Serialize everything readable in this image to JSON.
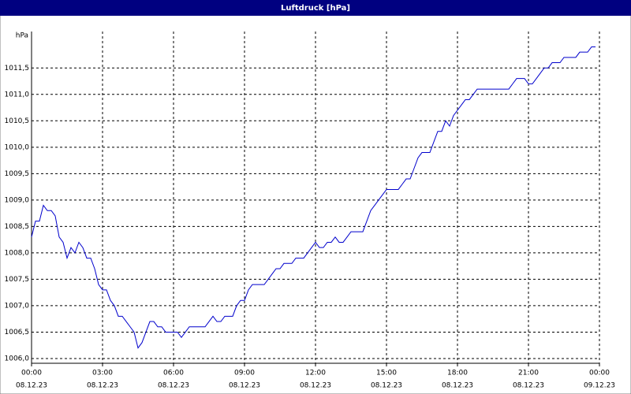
{
  "chart_data": {
    "type": "line",
    "title": "Luftdruck [hPa]",
    "y_unit": "hPa",
    "x": [
      0,
      10,
      20,
      30,
      40,
      50,
      60,
      70,
      80,
      90,
      100,
      110,
      120,
      130,
      140,
      150,
      160,
      170,
      180,
      190,
      200,
      210,
      220,
      230,
      240,
      250,
      260,
      270,
      280,
      290,
      300,
      310,
      320,
      330,
      340,
      350,
      360,
      370,
      380,
      390,
      400,
      410,
      420,
      430,
      440,
      450,
      460,
      470,
      480,
      490,
      500,
      510,
      520,
      530,
      540,
      550,
      560,
      570,
      580,
      590,
      600,
      610,
      620,
      630,
      640,
      650,
      660,
      670,
      680,
      690,
      700,
      710,
      720,
      730,
      740,
      750,
      760,
      770,
      780,
      790,
      800,
      810,
      820,
      830,
      840,
      850,
      860,
      870,
      880,
      890,
      900,
      910,
      920,
      930,
      940,
      950,
      960,
      970,
      980,
      990,
      1000,
      1010,
      1020,
      1030,
      1040,
      1050,
      1060,
      1070,
      1080,
      1090,
      1100,
      1110,
      1120,
      1130,
      1140,
      1150,
      1160,
      1170,
      1180,
      1190,
      1200,
      1210,
      1220,
      1230,
      1240,
      1250,
      1260,
      1270,
      1280,
      1290,
      1300,
      1310,
      1320,
      1330,
      1340,
      1350,
      1360,
      1370,
      1380,
      1390,
      1400,
      1410,
      1420,
      1430
    ],
    "series": [
      {
        "name": "Luftdruck",
        "color": "#0000cc",
        "values": [
          1008.3,
          1008.6,
          1008.6,
          1008.9,
          1008.8,
          1008.8,
          1008.7,
          1008.3,
          1008.2,
          1007.9,
          1008.1,
          1008.0,
          1008.2,
          1008.1,
          1007.9,
          1007.9,
          1007.7,
          1007.4,
          1007.3,
          1007.3,
          1007.1,
          1007.0,
          1006.8,
          1006.8,
          1006.7,
          1006.6,
          1006.5,
          1006.2,
          1006.3,
          1006.5,
          1006.7,
          1006.7,
          1006.6,
          1006.6,
          1006.5,
          1006.5,
          1006.5,
          1006.5,
          1006.4,
          1006.5,
          1006.6,
          1006.6,
          1006.6,
          1006.6,
          1006.6,
          1006.7,
          1006.8,
          1006.7,
          1006.7,
          1006.8,
          1006.8,
          1006.8,
          1007.0,
          1007.1,
          1007.1,
          1007.3,
          1007.4,
          1007.4,
          1007.4,
          1007.4,
          1007.5,
          1007.6,
          1007.7,
          1007.7,
          1007.8,
          1007.8,
          1007.8,
          1007.9,
          1007.9,
          1007.9,
          1008.0,
          1008.1,
          1008.2,
          1008.1,
          1008.1,
          1008.2,
          1008.2,
          1008.3,
          1008.2,
          1008.2,
          1008.3,
          1008.4,
          1008.4,
          1008.4,
          1008.4,
          1008.6,
          1008.8,
          1008.9,
          1009.0,
          1009.1,
          1009.2,
          1009.2,
          1009.2,
          1009.2,
          1009.3,
          1009.4,
          1009.4,
          1009.6,
          1009.8,
          1009.9,
          1009.9,
          1009.9,
          1010.1,
          1010.3,
          1010.3,
          1010.5,
          1010.4,
          1010.6,
          1010.7,
          1010.8,
          1010.9,
          1010.9,
          1011.0,
          1011.1,
          1011.1,
          1011.1,
          1011.1,
          1011.1,
          1011.1,
          1011.1,
          1011.1,
          1011.1,
          1011.2,
          1011.3,
          1011.3,
          1011.3,
          1011.2,
          1011.2,
          1011.3,
          1011.4,
          1011.5,
          1011.5,
          1011.6,
          1011.6,
          1011.6,
          1011.7,
          1011.7,
          1011.7,
          1011.7,
          1011.8,
          1011.8,
          1011.8,
          1011.9,
          1011.9
        ]
      }
    ],
    "xlim": [
      0,
      1440
    ],
    "xticks": [
      {
        "value": 0,
        "label": "00:00"
      },
      {
        "value": 180,
        "label": "03:00"
      },
      {
        "value": 360,
        "label": "06:00"
      },
      {
        "value": 540,
        "label": "09:00"
      },
      {
        "value": 720,
        "label": "12:00"
      },
      {
        "value": 900,
        "label": "15:00"
      },
      {
        "value": 1080,
        "label": "18:00"
      },
      {
        "value": 1260,
        "label": "21:00"
      },
      {
        "value": 1440,
        "label": "00:00"
      }
    ],
    "xtick_dates": [
      "08.12.23",
      "08.12.23",
      "08.12.23",
      "08.12.23",
      "08.12.23",
      "08.12.23",
      "08.12.23",
      "08.12.23",
      "09.12.23"
    ],
    "ylim": [
      1005.91,
      1012.19
    ],
    "yticks": [
      {
        "value": 1006.0,
        "label": "1006,0"
      },
      {
        "value": 1006.5,
        "label": "1006,5"
      },
      {
        "value": 1007.0,
        "label": "1007,0"
      },
      {
        "value": 1007.5,
        "label": "1007,5"
      },
      {
        "value": 1008.0,
        "label": "1008,0"
      },
      {
        "value": 1008.5,
        "label": "1008,5"
      },
      {
        "value": 1009.0,
        "label": "1009,0"
      },
      {
        "value": 1009.5,
        "label": "1009,5"
      },
      {
        "value": 1010.0,
        "label": "1010,0"
      },
      {
        "value": 1010.5,
        "label": "1010,5"
      },
      {
        "value": 1011.0,
        "label": "1011,0"
      },
      {
        "value": 1011.5,
        "label": "1011,5"
      }
    ],
    "grid": true
  }
}
